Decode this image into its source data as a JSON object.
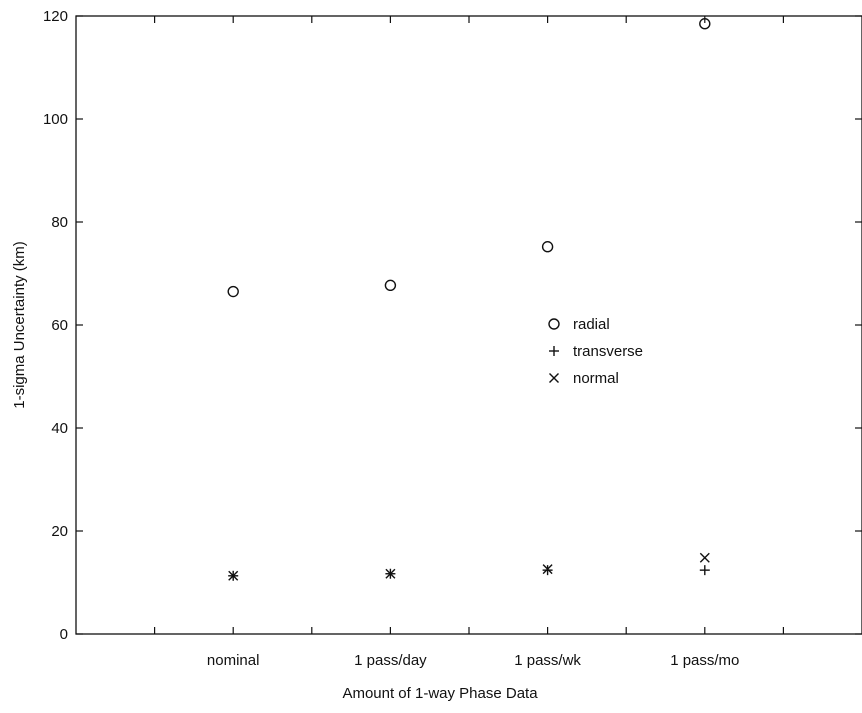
{
  "chart_data": {
    "type": "scatter",
    "categories": [
      "nominal",
      "1 pass/day",
      "1 pass/wk",
      "1 pass/mo"
    ],
    "xlabel": "Amount of 1-way Phase Data",
    "ylabel": "1-sigma Uncertainty (km)",
    "ylim": [
      0,
      120
    ],
    "yticks": [
      0,
      20,
      40,
      60,
      80,
      100,
      120
    ],
    "grid": false,
    "legend_position": "center-right",
    "series": [
      {
        "name": "radial",
        "marker": "o",
        "values": [
          66.5,
          67.7,
          75.2,
          118.5
        ]
      },
      {
        "name": "transverse",
        "marker": "+",
        "values": [
          11.3,
          11.7,
          12.4,
          12.4
        ]
      },
      {
        "name": "normal",
        "marker": "x",
        "values": [
          11.3,
          11.7,
          12.6,
          14.8
        ]
      }
    ]
  }
}
